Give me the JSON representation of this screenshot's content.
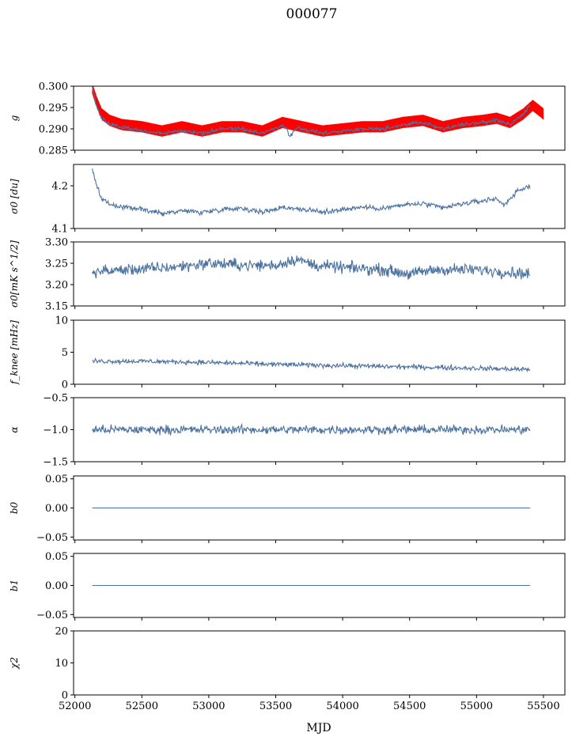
{
  "title": "000077",
  "xlabel": "MJD",
  "colors": {
    "series": "#4c72a0",
    "overlay": "#ff0000",
    "frame": "#000000"
  },
  "chart_data": {
    "type": "line",
    "shared_x": true,
    "xlim": [
      51990,
      55660
    ],
    "xticks": [
      52000,
      52500,
      53000,
      53500,
      54000,
      54500,
      55000,
      55500
    ],
    "xlabel": "MJD",
    "data_x_range": [
      52130,
      55400
    ],
    "panels": [
      {
        "id": "g",
        "ylabel": "g",
        "ylim": [
          0.285,
          0.3
        ],
        "yticks": [
          0.285,
          0.29,
          0.295,
          0.3
        ],
        "yticklabels": [
          "0.285",
          "0.290",
          "0.295",
          "0.300"
        ],
        "series": [
          {
            "role": "overlay",
            "x_range": [
              52130,
              55500
            ],
            "band": 0.0012,
            "x": [
              52130,
              52160,
              52200,
              52260,
              52350,
              52500,
              52650,
              52800,
              52950,
              53100,
              53250,
              53400,
              53550,
              53700,
              53850,
              54000,
              54150,
              54300,
              54450,
              54600,
              54750,
              54900,
              55050,
              55150,
              55250,
              55350,
              55420,
              55500
            ],
            "y": [
              0.2995,
              0.2965,
              0.2935,
              0.292,
              0.291,
              0.2905,
              0.2895,
              0.2905,
              0.2895,
              0.2905,
              0.2905,
              0.2895,
              0.2915,
              0.2905,
              0.2895,
              0.29,
              0.2905,
              0.2905,
              0.2915,
              0.292,
              0.2905,
              0.2915,
              0.292,
              0.2925,
              0.2915,
              0.2935,
              0.2955,
              0.2935
            ]
          },
          {
            "role": "main",
            "x_range": [
              52130,
              55400
            ],
            "noise": 0.0003,
            "dips": [
              [
                53610,
                0.002
              ]
            ],
            "x": [
              52130,
              52160,
              52200,
              52260,
              52350,
              52500,
              52650,
              52800,
              52950,
              53100,
              53250,
              53400,
              53550,
              53700,
              53850,
              54000,
              54150,
              54300,
              54450,
              54600,
              54750,
              54900,
              55050,
              55150,
              55250,
              55350,
              55400
            ],
            "y": [
              0.2995,
              0.2955,
              0.2925,
              0.291,
              0.2905,
              0.2895,
              0.289,
              0.2895,
              0.289,
              0.29,
              0.29,
              0.289,
              0.2905,
              0.29,
              0.289,
              0.2895,
              0.29,
              0.29,
              0.291,
              0.2915,
              0.29,
              0.291,
              0.2915,
              0.292,
              0.291,
              0.2935,
              0.2955
            ]
          }
        ]
      },
      {
        "id": "sigma0_du",
        "ylabel": "σ0 [du]",
        "ylim": [
          4.1,
          4.25
        ],
        "yticks": [
          4.1,
          4.2
        ],
        "yticklabels": [
          "4.1",
          "4.2"
        ],
        "series": [
          {
            "role": "main",
            "x_range": [
              52130,
              55400
            ],
            "noise": 0.004,
            "x": [
              52130,
              52160,
              52200,
              52260,
              52350,
              52500,
              52650,
              52800,
              52950,
              53100,
              53250,
              53400,
              53550,
              53700,
              53850,
              54000,
              54150,
              54300,
              54450,
              54600,
              54750,
              54900,
              55050,
              55150,
              55200,
              55300,
              55400
            ],
            "y": [
              4.237,
              4.2,
              4.17,
              4.155,
              4.15,
              4.145,
              4.135,
              4.142,
              4.138,
              4.145,
              4.148,
              4.138,
              4.15,
              4.145,
              4.138,
              4.145,
              4.15,
              4.147,
              4.155,
              4.158,
              4.148,
              4.158,
              4.165,
              4.17,
              4.155,
              4.185,
              4.2
            ]
          }
        ]
      },
      {
        "id": "sigma0_mks",
        "ylabel": "σ0[mK s^1/2]",
        "ylim": [
          3.15,
          3.3
        ],
        "yticks": [
          3.15,
          3.2,
          3.25,
          3.3
        ],
        "yticklabels": [
          "3.15",
          "3.20",
          "3.25",
          "3.30"
        ],
        "series": [
          {
            "role": "main",
            "x_range": [
              52130,
              55400
            ],
            "noise": 0.009,
            "x": [
              52130,
              52400,
              52700,
              53000,
              53300,
              53500,
              53650,
              53800,
              54000,
              54300,
              54500,
              54700,
              55000,
              55400
            ],
            "y": [
              3.23,
              3.235,
              3.24,
              3.25,
              3.245,
              3.245,
              3.26,
              3.245,
              3.24,
              3.235,
              3.225,
              3.235,
              3.235,
              3.225
            ]
          }
        ]
      },
      {
        "id": "fknee",
        "ylabel": "f_knee [mHz]",
        "ylim": [
          0,
          10
        ],
        "yticks": [
          0,
          5,
          10
        ],
        "yticklabels": [
          "0",
          "5",
          "10"
        ],
        "series": [
          {
            "role": "main",
            "x_range": [
              52130,
              55400
            ],
            "noise": 0.25,
            "x": [
              52130,
              52500,
              53000,
              53500,
              54000,
              54500,
              55000,
              55400
            ],
            "y": [
              3.6,
              3.6,
              3.4,
              3.1,
              2.9,
              2.7,
              2.5,
              2.3
            ]
          }
        ]
      },
      {
        "id": "alpha",
        "ylabel": "α",
        "ylim": [
          -1.5,
          -0.5
        ],
        "yticks": [
          -1.5,
          -1.0,
          -0.5
        ],
        "yticklabels": [
          "−1.5",
          "−1.0",
          "−0.5"
        ],
        "series": [
          {
            "role": "main",
            "x_range": [
              52130,
              55400
            ],
            "noise": 0.045,
            "x": [
              52130,
              55400
            ],
            "y": [
              -1.0,
              -1.0
            ]
          }
        ]
      },
      {
        "id": "b0",
        "ylabel": "b0",
        "ylim": [
          -0.055,
          0.055
        ],
        "yticks": [
          -0.05,
          0.0,
          0.05
        ],
        "yticklabels": [
          "−0.05",
          "0.00",
          "0.05"
        ],
        "series": [
          {
            "role": "main",
            "x_range": [
              52130,
              55400
            ],
            "noise": 0,
            "x": [
              52130,
              55400
            ],
            "y": [
              0,
              0
            ]
          }
        ]
      },
      {
        "id": "b1",
        "ylabel": "b1",
        "ylim": [
          -0.055,
          0.055
        ],
        "yticks": [
          -0.05,
          0.0,
          0.05
        ],
        "yticklabels": [
          "−0.05",
          "0.00",
          "0.05"
        ],
        "series": [
          {
            "role": "main",
            "x_range": [
              52130,
              55400
            ],
            "noise": 0,
            "x": [
              52130,
              55400
            ],
            "y": [
              0,
              0
            ]
          }
        ]
      },
      {
        "id": "chi2",
        "ylabel": "χ2",
        "ylim": [
          0,
          20
        ],
        "yticks": [
          0,
          10,
          20
        ],
        "yticklabels": [
          "0",
          "10",
          "20"
        ],
        "series": [
          {
            "role": "main",
            "x_range": [
              52130,
              55400
            ],
            "noise": 0,
            "x": [
              52130,
              55400
            ],
            "y": [
              0,
              0
            ]
          }
        ]
      }
    ]
  }
}
